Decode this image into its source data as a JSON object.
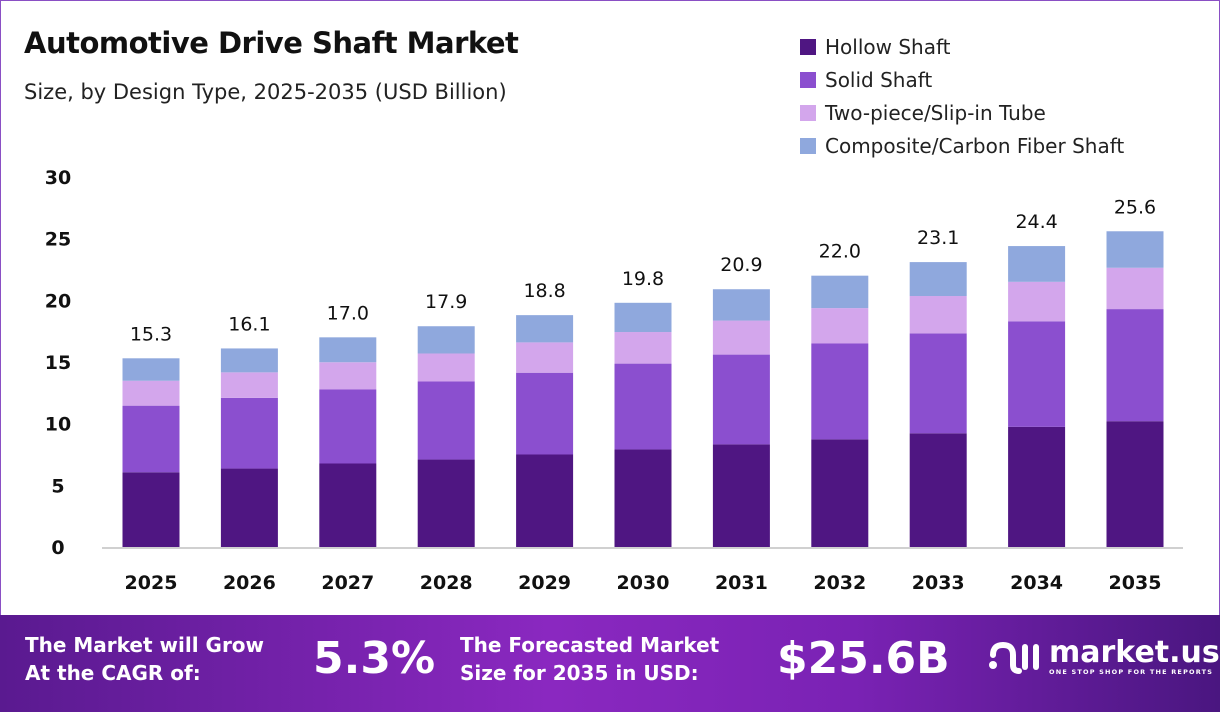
{
  "chart_data": {
    "type": "bar",
    "stacked": true,
    "title": "Automotive Drive Shaft Market",
    "subtitle": "Size, by Design Type, 2025-2035 (USD Billion)",
    "categories": [
      "2025",
      "2026",
      "2027",
      "2028",
      "2029",
      "2030",
      "2031",
      "2032",
      "2033",
      "2034",
      "2035"
    ],
    "series": [
      {
        "name": "Hollow Shaft",
        "color": "#4f1682",
        "values": [
          6.06,
          6.36,
          6.77,
          7.09,
          7.5,
          7.91,
          8.32,
          8.73,
          9.22,
          9.74,
          10.2
        ]
      },
      {
        "name": "Solid Shaft",
        "color": "#8b4fcf",
        "values": [
          5.4,
          5.73,
          6.0,
          6.33,
          6.63,
          6.96,
          7.28,
          7.77,
          8.1,
          8.56,
          9.09
        ]
      },
      {
        "name": "Two-piece/Slip-in Tube",
        "color": "#d3a6ec",
        "values": [
          2.02,
          2.07,
          2.21,
          2.27,
          2.46,
          2.56,
          2.76,
          2.87,
          3.03,
          3.2,
          3.35
        ]
      },
      {
        "name": "Composite/Carbon Fiber Shaft",
        "color": "#8fa8dd",
        "values": [
          1.82,
          1.94,
          2.02,
          2.21,
          2.21,
          2.37,
          2.54,
          2.63,
          2.75,
          2.9,
          2.96
        ]
      }
    ],
    "totals": [
      "15.3",
      "16.1",
      "17.0",
      "17.9",
      "18.8",
      "19.8",
      "20.9",
      "22.0",
      "23.1",
      "24.4",
      "25.6"
    ],
    "yticks": [
      "0",
      "5",
      "10",
      "15",
      "20",
      "25",
      "30"
    ],
    "ylim": [
      0,
      30
    ],
    "grid": false,
    "legend_position": "top-right"
  },
  "banner": {
    "cagr_label_1": "The Market will Grow",
    "cagr_label_2": "At the CAGR of:",
    "cagr_value": "5.3%",
    "forecast_label_1": "The Forecasted Market",
    "forecast_label_2": "Size for 2035 in USD:",
    "forecast_value": "$25.6B",
    "logo_name": "market.us",
    "logo_tagline": "ONE STOP SHOP FOR THE REPORTS"
  }
}
